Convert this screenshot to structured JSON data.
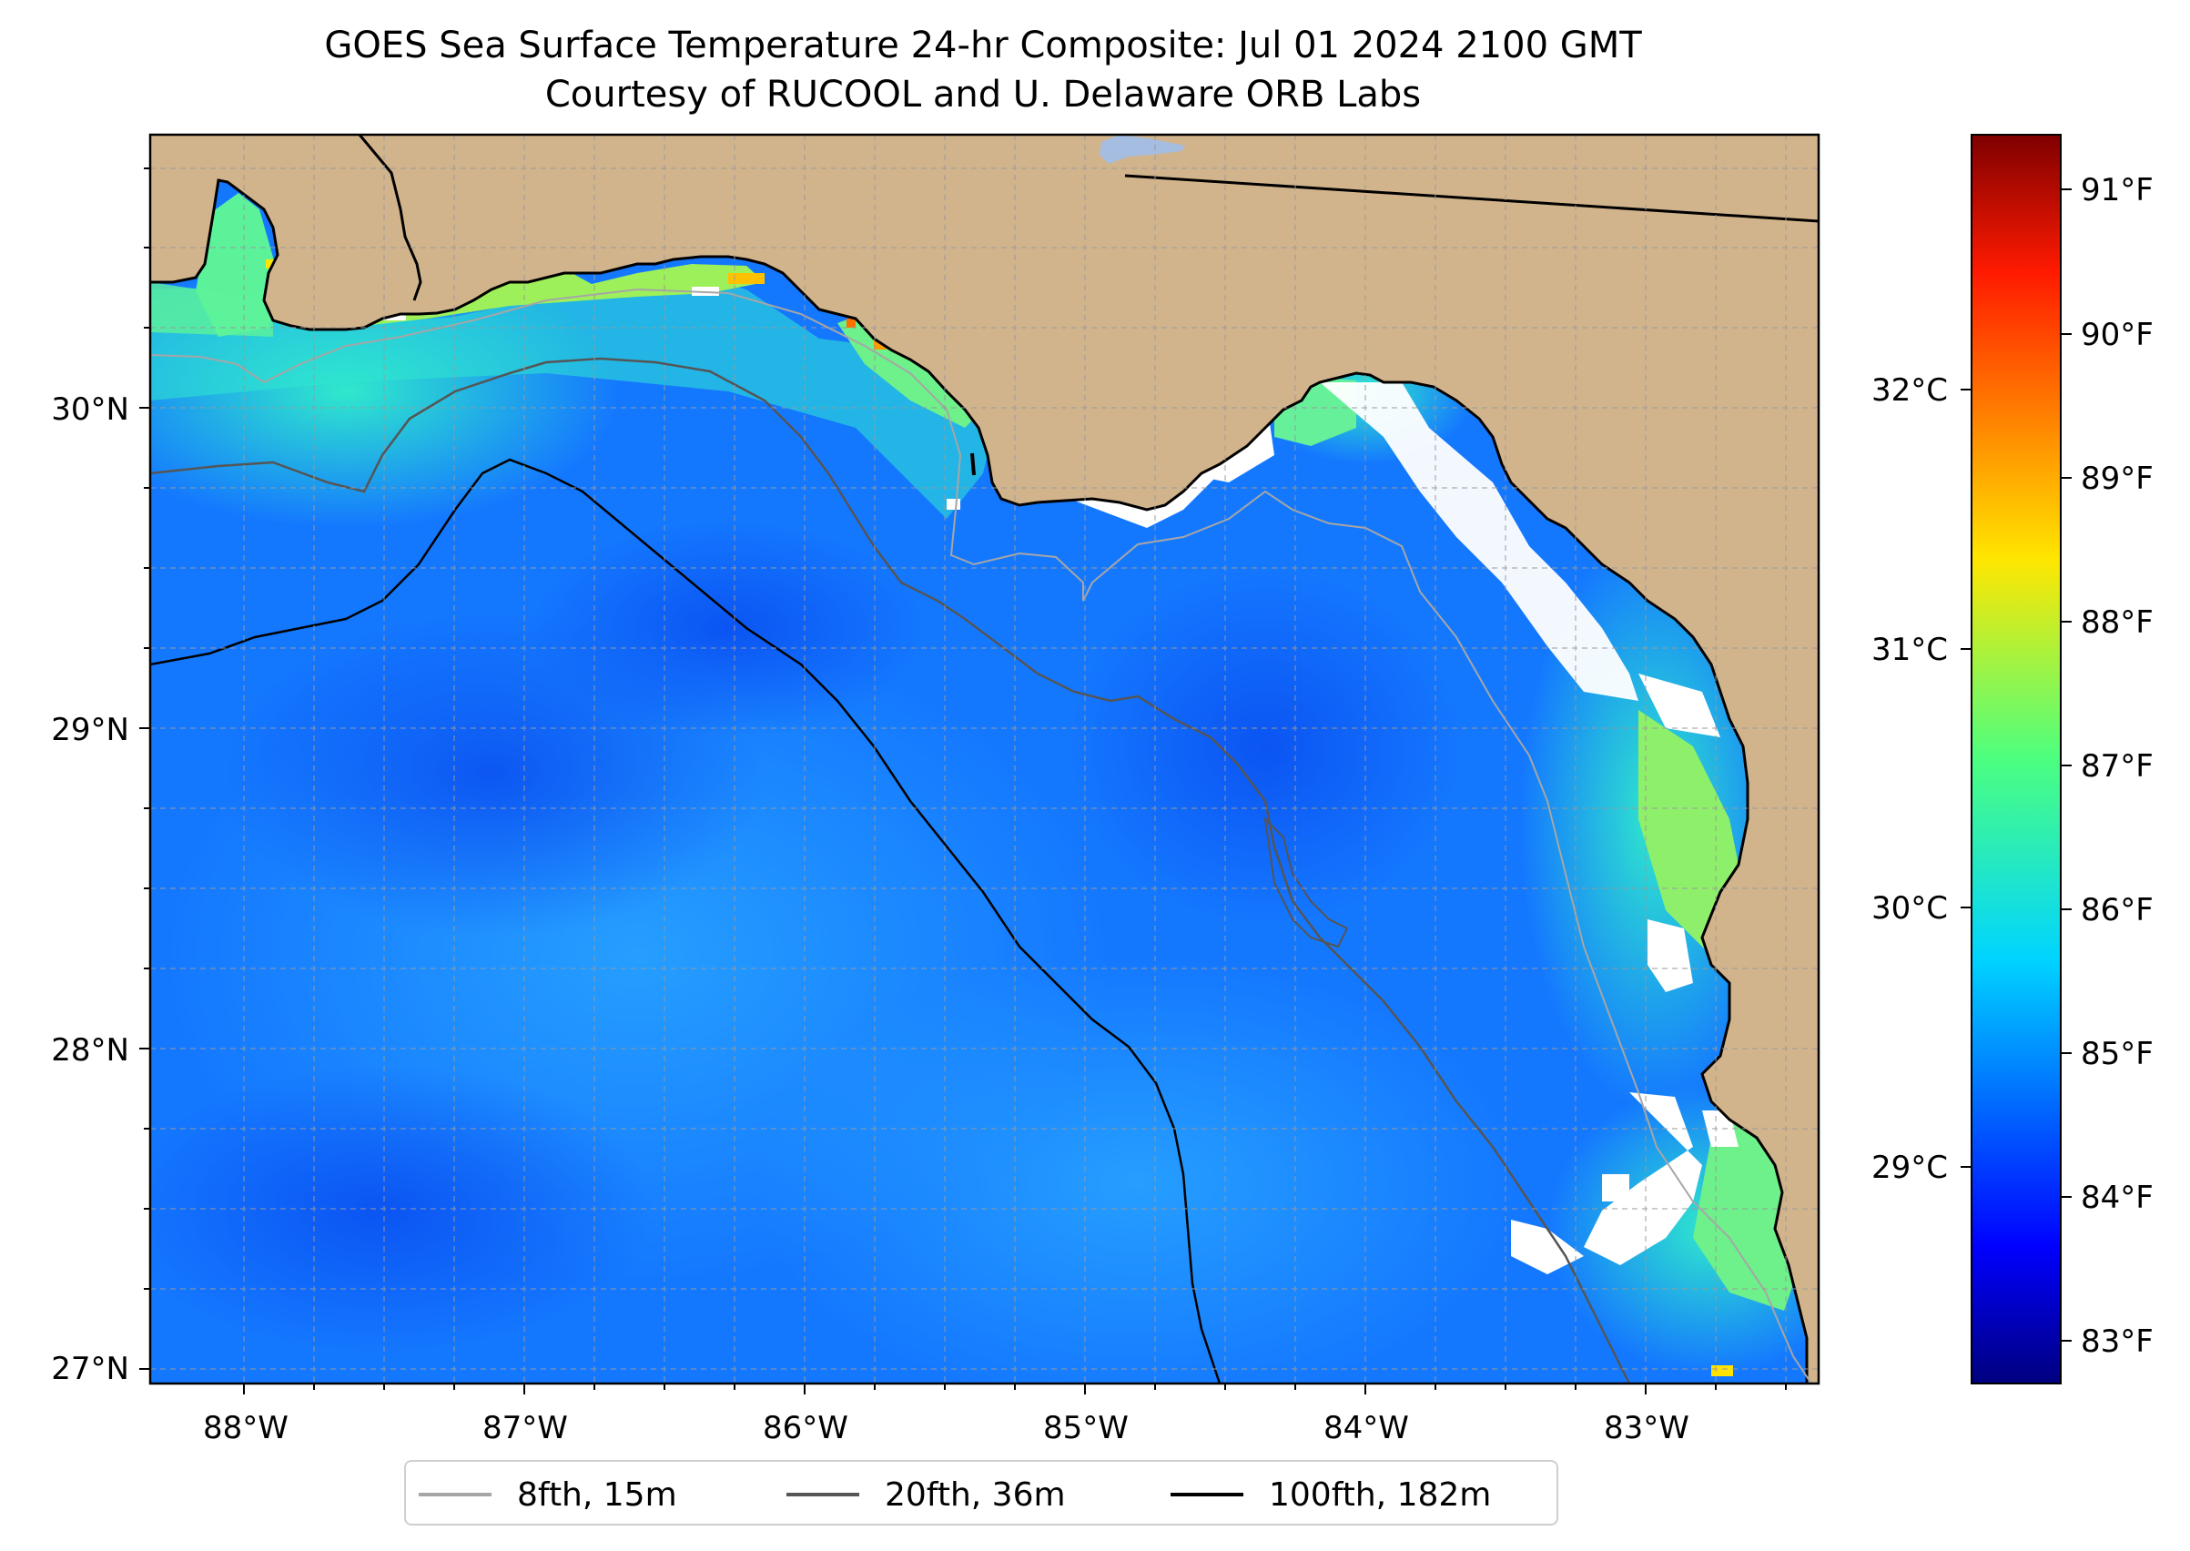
{
  "title": {
    "line1": "GOES Sea Surface Temperature 24-hr Composite: Jul 01 2024 2100 GMT",
    "line2": "Courtesy of RUCOOL and U. Delaware ORB Labs"
  },
  "map": {
    "x_ticks": [
      "88°W",
      "87°W",
      "86°W",
      "85°W",
      "84°W",
      "83°W"
    ],
    "y_ticks": [
      "30°N",
      "29°N",
      "28°N",
      "27°N"
    ],
    "colors": {
      "land": "#d2b48c",
      "lake": "#a4bde0",
      "no_data": "#ffffff",
      "gridline": "#9a9a9a"
    }
  },
  "colorbar": {
    "fahrenheit_ticks": [
      "91°F",
      "90°F",
      "89°F",
      "88°F",
      "87°F",
      "86°F",
      "85°F",
      "84°F",
      "83°F"
    ],
    "celsius_ticks": [
      "32°C",
      "31°C",
      "30°C",
      "29°C"
    ],
    "colormap": "jet"
  },
  "legend": {
    "items": [
      {
        "label": "8fth, 15m",
        "color": "#a6a6a6"
      },
      {
        "label": "20fth, 36m",
        "color": "#555555"
      },
      {
        "label": "100fth, 182m",
        "color": "#000000"
      }
    ]
  }
}
